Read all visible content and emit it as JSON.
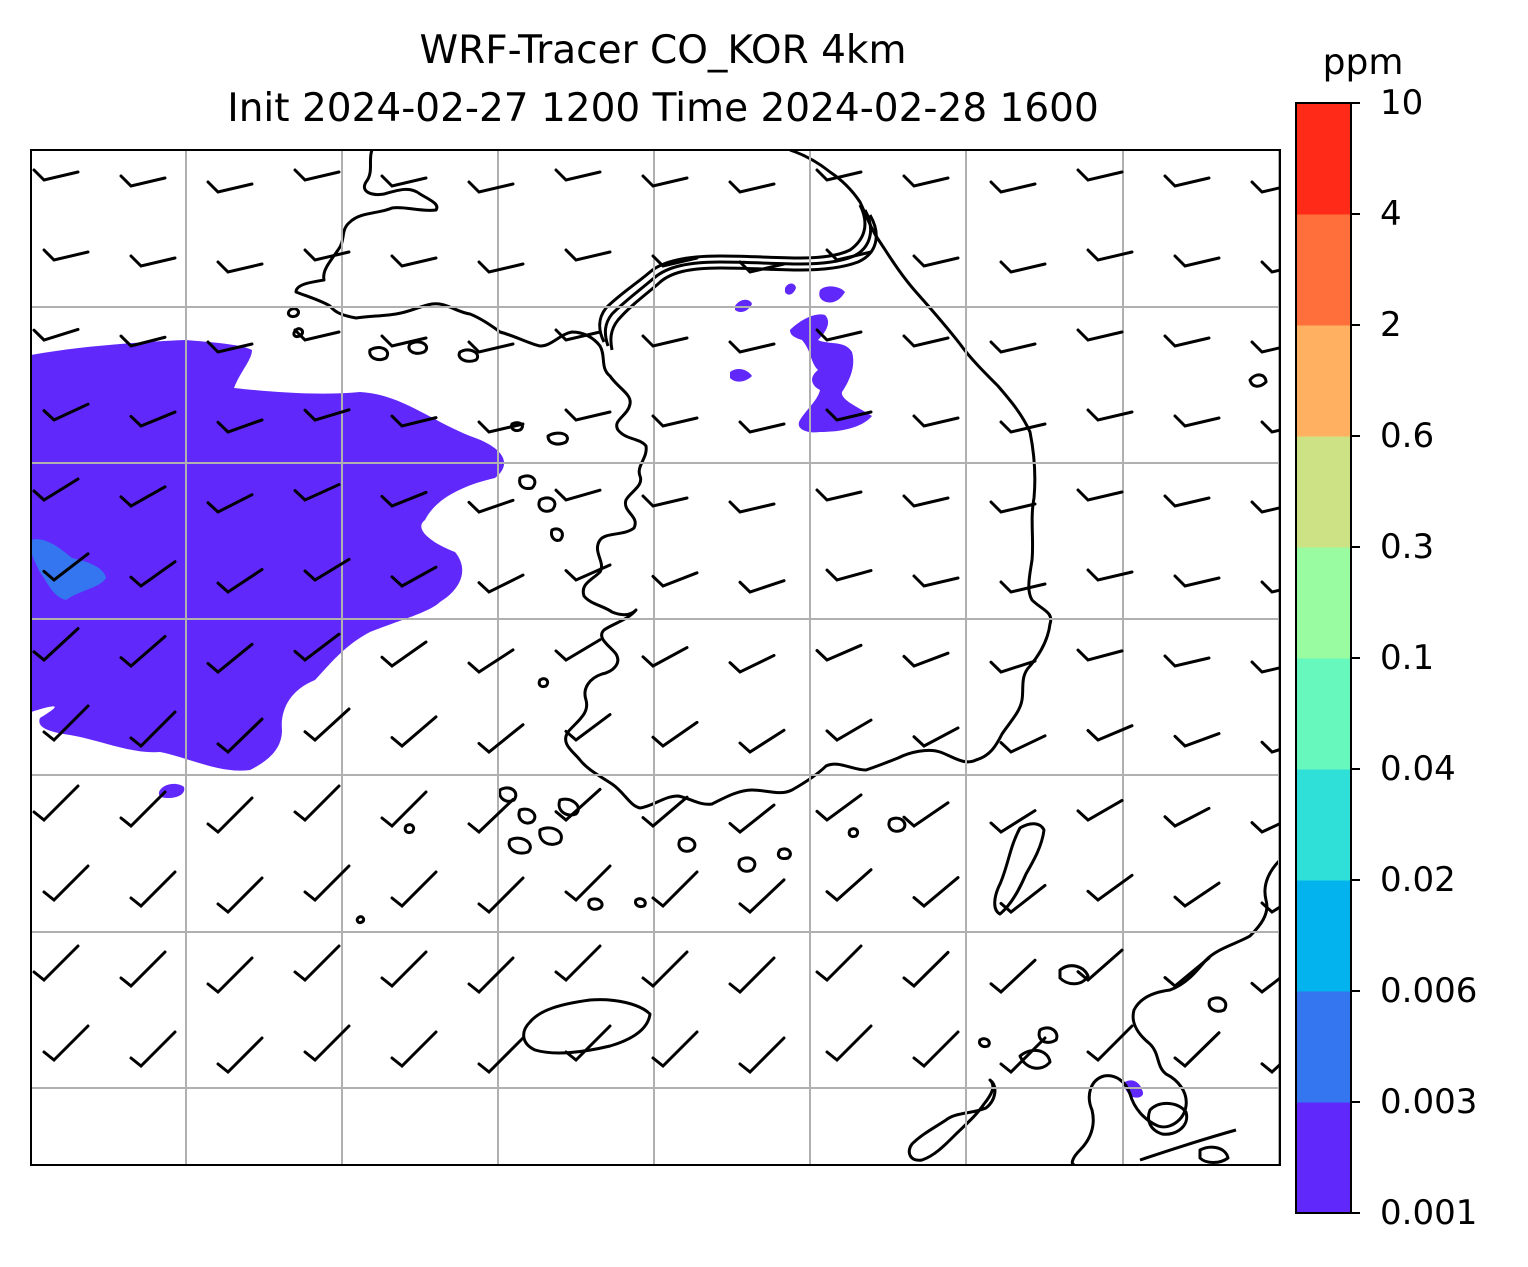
{
  "title": {
    "line1": "WRF-Tracer CO_KOR 4km",
    "line2": "Init 2024-02-27 1200 Time 2024-02-28 1600"
  },
  "colorbar": {
    "unit": "ppm",
    "levels": [
      {
        "label": "0.001",
        "color": "#6128fc"
      },
      {
        "label": "0.003",
        "color": "#3476f0"
      },
      {
        "label": "0.006",
        "color": "#02b3ee"
      },
      {
        "label": "0.02",
        "color": "#2ee0d7"
      },
      {
        "label": "0.04",
        "color": "#67f8bd"
      },
      {
        "label": "0.1",
        "color": "#99fca1"
      },
      {
        "label": "0.3",
        "color": "#cde285"
      },
      {
        "label": "0.6",
        "color": "#ffb061"
      },
      {
        "label": "2",
        "color": "#ff6f3b"
      },
      {
        "label": "4",
        "color": "#ff2b18"
      },
      {
        "label": "10",
        "color": null
      }
    ]
  },
  "map": {
    "gridlines": true,
    "coastline_color": "#000000",
    "gridline_color": "#b0b0b0",
    "wind_barbs": true
  }
}
